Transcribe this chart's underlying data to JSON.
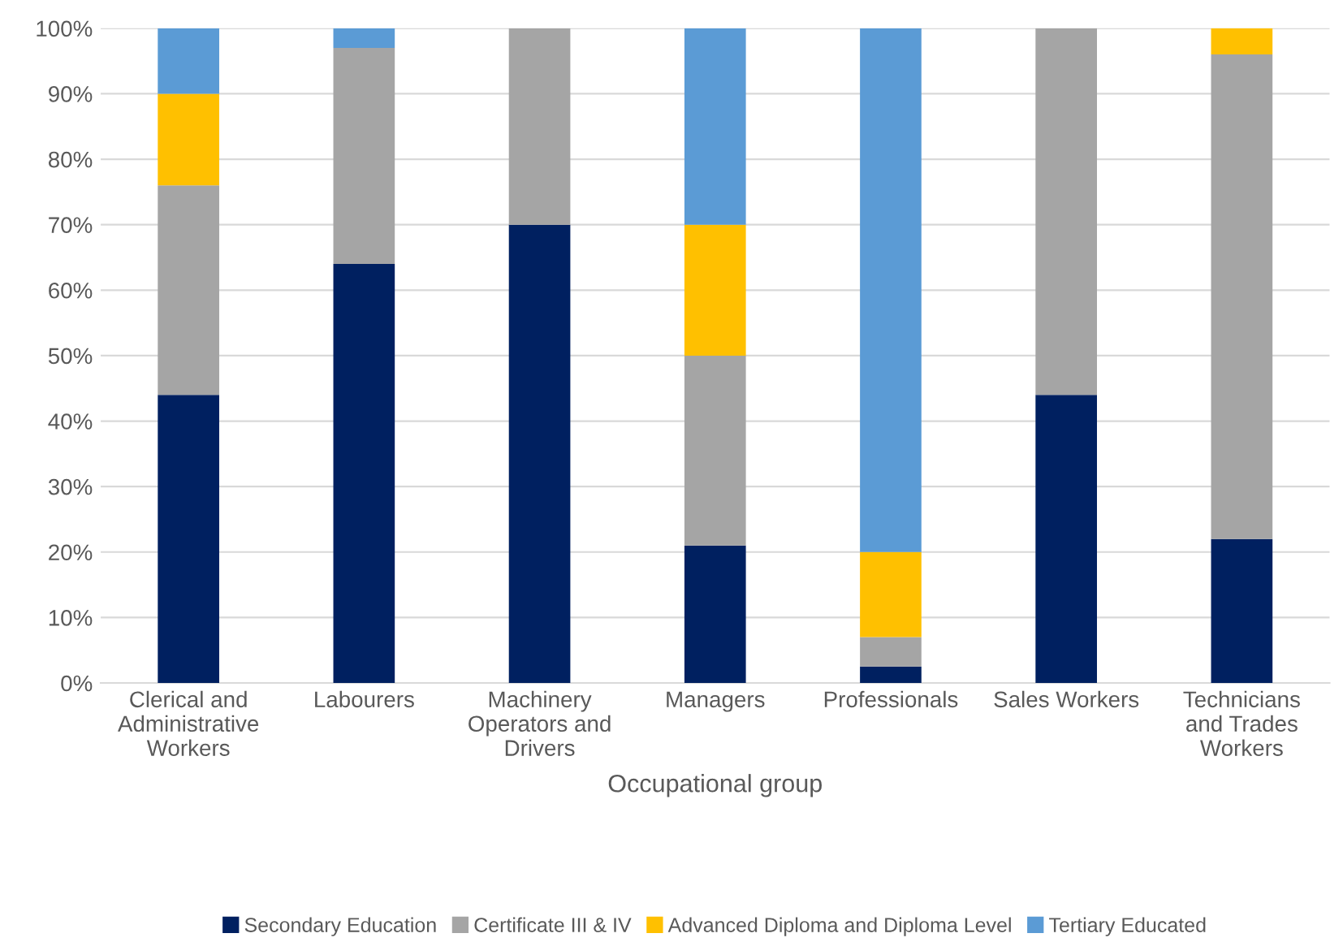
{
  "chart_data": {
    "type": "bar",
    "stacked": true,
    "xlabel": "Occupational group",
    "categories": [
      "Clerical and Administrative Workers",
      "Labourers",
      "Machinery Operators and Drivers",
      "Managers",
      "Professionals",
      "Sales Workers",
      "Technicians and Trades Workers"
    ],
    "series": [
      {
        "name": "Secondary Education",
        "color": "#002060",
        "values": [
          44,
          64,
          70,
          21,
          2.5,
          44,
          22
        ]
      },
      {
        "name": "Certificate III & IV",
        "color": "#a5a5a5",
        "values": [
          32,
          33,
          30,
          29,
          4.5,
          56,
          74
        ]
      },
      {
        "name": "Advanced Diploma and Diploma Level",
        "color": "#ffc000",
        "values": [
          14,
          0,
          0,
          20,
          13,
          0,
          4
        ]
      },
      {
        "name": "Tertiary Educated",
        "color": "#5b9bd5",
        "values": [
          10,
          3,
          0,
          30,
          80,
          0,
          0
        ]
      }
    ],
    "ylim": [
      0,
      100
    ],
    "yticks": [
      {
        "value": 0,
        "label": "0%"
      },
      {
        "value": 10,
        "label": "10%"
      },
      {
        "value": 20,
        "label": "20%"
      },
      {
        "value": 30,
        "label": "30%"
      },
      {
        "value": 40,
        "label": "40%"
      },
      {
        "value": 50,
        "label": "50%"
      },
      {
        "value": 60,
        "label": "60%"
      },
      {
        "value": 70,
        "label": "70%"
      },
      {
        "value": 80,
        "label": "80%"
      },
      {
        "value": 90,
        "label": "90%"
      },
      {
        "value": 100,
        "label": "100%"
      }
    ],
    "grid": "y",
    "legend": "bottom"
  }
}
